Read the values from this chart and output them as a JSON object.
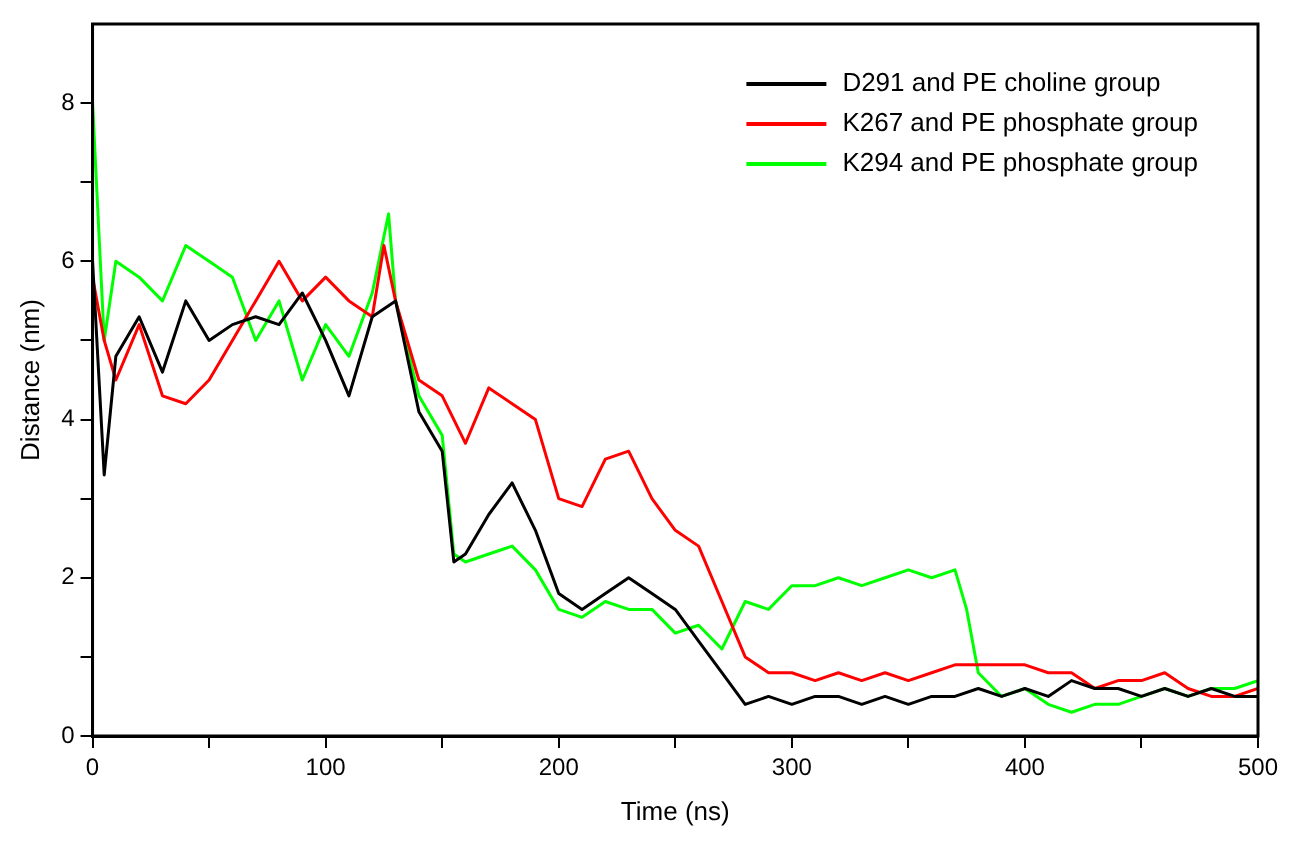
{
  "chart_data": {
    "type": "line",
    "xlabel": "Time (ns)",
    "ylabel": "Distance (nm)",
    "xlim": [
      0,
      500
    ],
    "ylim": [
      0,
      9
    ],
    "xticks": [
      0,
      {
        "value": 50,
        "label": null
      },
      100,
      {
        "value": 150,
        "label": null
      },
      200,
      {
        "value": 250,
        "label": null
      },
      300,
      {
        "value": 350,
        "label": null
      },
      400,
      {
        "value": 450,
        "label": null
      },
      500
    ],
    "yticks": [
      0,
      {
        "value": 1,
        "label": null
      },
      2,
      {
        "value": 3,
        "label": null
      },
      4,
      {
        "value": 5,
        "label": null
      },
      6,
      {
        "value": 7,
        "label": null
      },
      8
    ],
    "grid": false,
    "legend": "top right",
    "marker": "none",
    "line_style": "solid",
    "series": [
      {
        "name": "D291 and PE choline group",
        "color": "#000000",
        "x": [
          0,
          5,
          10,
          20,
          30,
          40,
          50,
          60,
          70,
          80,
          90,
          100,
          110,
          120,
          130,
          140,
          150,
          155,
          160,
          170,
          180,
          190,
          200,
          210,
          220,
          230,
          240,
          250,
          260,
          270,
          280,
          290,
          300,
          310,
          320,
          330,
          340,
          350,
          360,
          370,
          380,
          390,
          400,
          410,
          420,
          430,
          440,
          450,
          460,
          470,
          480,
          490,
          500
        ],
        "values": [
          6.0,
          3.3,
          4.8,
          5.3,
          4.6,
          5.5,
          5.0,
          5.2,
          5.3,
          5.2,
          5.6,
          5.0,
          4.3,
          5.3,
          5.5,
          4.1,
          3.6,
          2.2,
          2.3,
          2.8,
          3.2,
          2.6,
          1.8,
          1.6,
          1.8,
          2.0,
          1.8,
          1.6,
          1.2,
          0.8,
          0.4,
          0.5,
          0.4,
          0.5,
          0.5,
          0.4,
          0.5,
          0.4,
          0.5,
          0.5,
          0.6,
          0.5,
          0.6,
          0.5,
          0.7,
          0.6,
          0.6,
          0.5,
          0.6,
          0.5,
          0.6,
          0.5,
          0.5
        ]
      },
      {
        "name": "K267 and PE phosphate group",
        "color": "#ff0000",
        "x": [
          0,
          5,
          10,
          20,
          30,
          40,
          50,
          60,
          70,
          80,
          90,
          100,
          110,
          120,
          125,
          130,
          140,
          150,
          160,
          170,
          180,
          190,
          200,
          210,
          220,
          230,
          240,
          250,
          260,
          270,
          280,
          290,
          300,
          310,
          320,
          330,
          340,
          350,
          360,
          370,
          380,
          390,
          400,
          410,
          420,
          430,
          440,
          450,
          460,
          470,
          480,
          490,
          500
        ],
        "values": [
          5.8,
          5.0,
          4.5,
          5.2,
          4.3,
          4.2,
          4.5,
          5.0,
          5.5,
          6.0,
          5.5,
          5.8,
          5.5,
          5.3,
          6.2,
          5.5,
          4.5,
          4.3,
          3.7,
          4.4,
          4.2,
          4.0,
          3.0,
          2.9,
          3.5,
          3.6,
          3.0,
          2.6,
          2.4,
          1.7,
          1.0,
          0.8,
          0.8,
          0.7,
          0.8,
          0.7,
          0.8,
          0.7,
          0.8,
          0.9,
          0.9,
          0.9,
          0.9,
          0.8,
          0.8,
          0.6,
          0.7,
          0.7,
          0.8,
          0.6,
          0.5,
          0.5,
          0.6
        ]
      },
      {
        "name": "K294 and PE phosphate group",
        "color": "#00ff00",
        "x": [
          0,
          5,
          10,
          20,
          30,
          40,
          50,
          60,
          70,
          80,
          90,
          100,
          110,
          120,
          127,
          130,
          140,
          150,
          155,
          160,
          170,
          180,
          190,
          200,
          210,
          220,
          230,
          240,
          250,
          260,
          270,
          280,
          290,
          300,
          310,
          320,
          330,
          340,
          350,
          360,
          370,
          375,
          380,
          390,
          400,
          410,
          420,
          430,
          440,
          450,
          460,
          470,
          480,
          490,
          500
        ],
        "values": [
          8.0,
          5.0,
          6.0,
          5.8,
          5.5,
          6.2,
          6.0,
          5.8,
          5.0,
          5.5,
          4.5,
          5.2,
          4.8,
          5.6,
          6.6,
          5.5,
          4.3,
          3.8,
          2.3,
          2.2,
          2.3,
          2.4,
          2.1,
          1.6,
          1.5,
          1.7,
          1.6,
          1.6,
          1.3,
          1.4,
          1.1,
          1.7,
          1.6,
          1.9,
          1.9,
          2.0,
          1.9,
          2.0,
          2.1,
          2.0,
          2.1,
          1.6,
          0.8,
          0.5,
          0.6,
          0.4,
          0.3,
          0.4,
          0.4,
          0.5,
          0.6,
          0.5,
          0.6,
          0.6,
          0.7
        ]
      }
    ]
  }
}
